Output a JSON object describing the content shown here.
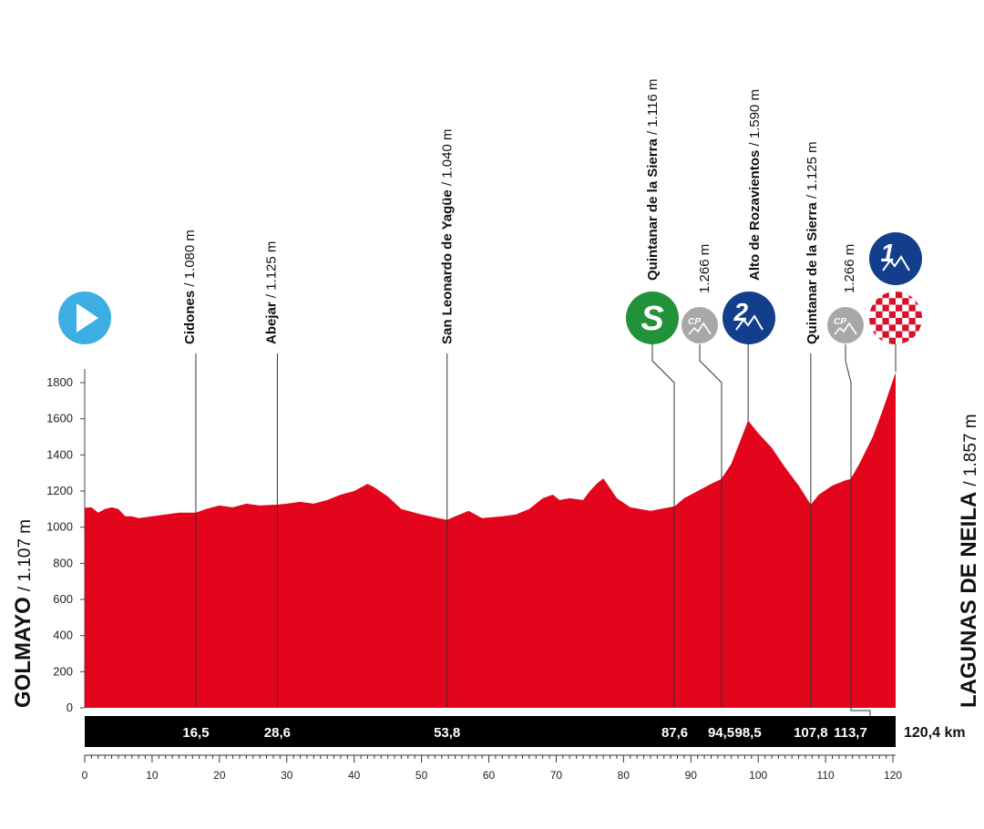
{
  "chart_data": {
    "type": "area",
    "title": "",
    "xlabel": "",
    "ylabel": "",
    "xlim": [
      0,
      121
    ],
    "ylim": [
      0,
      1900
    ],
    "x_ticks": [
      0,
      10,
      20,
      30,
      40,
      50,
      60,
      70,
      80,
      90,
      100,
      110,
      120
    ],
    "y_ticks": [
      0,
      200,
      400,
      600,
      800,
      1000,
      1200,
      1400,
      1600,
      1800
    ],
    "grid": false,
    "legend": "none",
    "fill_color": "#e3051b",
    "series": [
      {
        "x": [
          0,
          1,
          2,
          3,
          4,
          5,
          6,
          7,
          8,
          10,
          12,
          14,
          16.5,
          18,
          20,
          22,
          24,
          26,
          28.6,
          30,
          32,
          34,
          36,
          38,
          40,
          42,
          43,
          45,
          47,
          50,
          53.8,
          55,
          57,
          59,
          62,
          64,
          66,
          68,
          69.5,
          70.5,
          72,
          74,
          75,
          76,
          77,
          79,
          81,
          84,
          87.6,
          89,
          91,
          93,
          94.5,
          96,
          98.5,
          100,
          102,
          104,
          106,
          107.8,
          109,
          111,
          113,
          113.7,
          115,
          117,
          118.5,
          120.4
        ],
        "y": [
          1107,
          1110,
          1080,
          1100,
          1110,
          1100,
          1060,
          1060,
          1050,
          1060,
          1070,
          1080,
          1080,
          1100,
          1120,
          1110,
          1130,
          1120,
          1125,
          1130,
          1140,
          1130,
          1150,
          1180,
          1200,
          1240,
          1220,
          1170,
          1100,
          1070,
          1040,
          1060,
          1090,
          1050,
          1060,
          1070,
          1100,
          1160,
          1180,
          1150,
          1160,
          1150,
          1200,
          1240,
          1270,
          1160,
          1110,
          1090,
          1116,
          1160,
          1200,
          1240,
          1266,
          1350,
          1590,
          1520,
          1440,
          1330,
          1230,
          1125,
          1180,
          1230,
          1260,
          1266,
          1350,
          1500,
          1650,
          1857
        ]
      }
    ],
    "km_labels": [
      {
        "km": 16.5,
        "label": "16,5"
      },
      {
        "km": 28.6,
        "label": "28,6"
      },
      {
        "km": 53.8,
        "label": "53,8"
      },
      {
        "km": 87.6,
        "label": "87,6"
      },
      {
        "km": 94.5,
        "label": "94,5"
      },
      {
        "km": 98.5,
        "label": "98,5"
      },
      {
        "km": 107.8,
        "label": "107,8"
      },
      {
        "km": 113.7,
        "label": "113,7"
      }
    ],
    "total_distance_label": "120,4 km",
    "start": {
      "name": "GOLMAYO",
      "altitude": "/ 1.107 m"
    },
    "finish": {
      "name": "LAGUNAS DE NEILA",
      "altitude": "/ 1.857 m"
    },
    "waypoints": [
      {
        "km": 16.5,
        "name": "Cidones",
        "altitude": " / 1.080 m",
        "marker": "none"
      },
      {
        "km": 28.6,
        "name": "Abejar",
        "altitude": " / 1.125 m",
        "marker": "none"
      },
      {
        "km": 53.8,
        "name": "San Leonardo de Yagüe",
        "altitude": " / 1.040 m",
        "marker": "none"
      },
      {
        "km": 87.6,
        "name": "Quintanar de la Sierra",
        "altitude": " / 1.116 m",
        "marker": "sprint",
        "marker_label": "S"
      },
      {
        "km": 94.5,
        "name": "",
        "altitude": "1.266 m",
        "marker": "checkpoint",
        "marker_label": "CP"
      },
      {
        "km": 98.5,
        "name": "Alto de Rozavientos",
        "altitude": " / 1.590 m",
        "marker": "climb",
        "marker_label": "2"
      },
      {
        "km": 107.8,
        "name": "Quintanar de la Sierra",
        "altitude": " / 1.125 m",
        "marker": "none"
      },
      {
        "km": 113.7,
        "name": "",
        "altitude": "1.266 m",
        "marker": "checkpoint",
        "marker_label": "CP"
      },
      {
        "km": 120.4,
        "name": "",
        "altitude": "",
        "marker": "finish-climb",
        "marker_label": "1"
      }
    ],
    "colors": {
      "profile": "#e3051b",
      "start_icon": "#3daee3",
      "sprint": "#21913a",
      "climb": "#123e8c",
      "checkpoint": "#a8a8a8",
      "finish_check": "#d8102a"
    }
  }
}
